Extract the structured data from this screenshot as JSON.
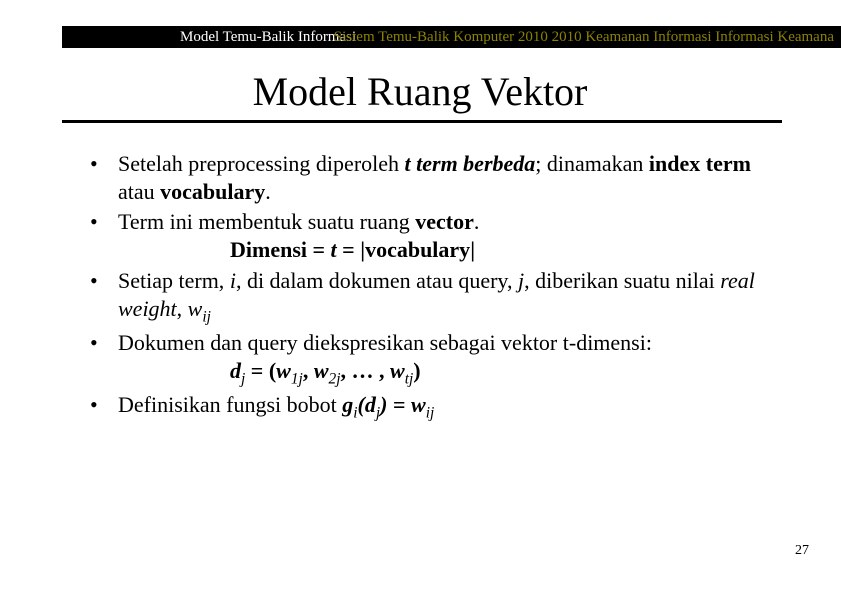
{
  "header": {
    "left": "Model Temu-Balik Informasi",
    "right": "Sistem Temu-Balik Komputer 2010 2010 Keamanan Informasi Informasi Keamana"
  },
  "title": "Model Ruang Vektor",
  "bullets": {
    "b1_pre": "Setelah preprocessing diperoleh ",
    "b1_tterm": "t term berbeda",
    "b1_post1": "; dinamakan ",
    "b1_index": "index term",
    "b1_post2": " atau ",
    "b1_vocab": "vocabulary",
    "b1_end": ".",
    "b2_pre": "Term ini membentuk suatu ruang ",
    "b2_vec": "vector",
    "b2_end": ".",
    "b2_dim_label": "Dimensi = ",
    "b2_t": "t",
    "b2_eq": " = |",
    "b2_voc": "vocabulary",
    "b2_close": "|",
    "b3_pre": "Setiap term, ",
    "b3_i": "i",
    "b3_mid1": ", di dalam dokumen atau query, ",
    "b3_j": "j",
    "b3_mid2": ", diberikan suatu nilai ",
    "b3_real": "real weight",
    "b3_mid3": ", ",
    "b3_w": "w",
    "b3_ij": "ij",
    "b4": "Dokumen dan query diekspresikan sebagai vektor t-dimensi:",
    "b4_dj": "d",
    "b4_j": "j",
    "b4_eq": " = (",
    "b4_w": "w",
    "b4_1j": "1j",
    "b4_c1": ", ",
    "b4_2j": "2j",
    "b4_c2": ", … , ",
    "b4_tj": "tj",
    "b4_close": ")",
    "b5_pre": "Definisikan fungsi bobot ",
    "b5_g": "g",
    "b5_i": "i",
    "b5_open": "(",
    "b5_d": "d",
    "b5_j": "j",
    "b5_close": ")",
    "b5_eq": " = ",
    "b5_w": "w",
    "b5_ij": "ij"
  },
  "page_number": "27",
  "colors": {
    "header_bg": "#000000",
    "header_left_text": "#ffffff",
    "header_right_text": "#8a8200",
    "rule": "#000000",
    "text": "#000000",
    "background": "#ffffff"
  },
  "fonts": {
    "body_family": "Times New Roman",
    "title_size_pt": 30,
    "body_size_pt": 17,
    "header_size_pt": 11,
    "pagenum_size_pt": 10
  }
}
